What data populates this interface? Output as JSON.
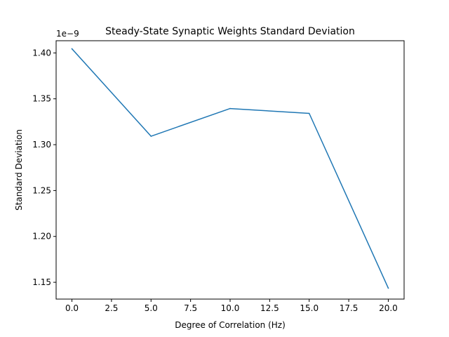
{
  "chart_data": {
    "type": "line",
    "title": "Steady-State Synaptic Weights Standard Deviation",
    "xlabel": "Degree of Correlation (Hz)",
    "ylabel": "Standard Deviation",
    "y_offset_label": "1e−9",
    "xlim": [
      -1.0,
      21.0
    ],
    "ylim": [
      1.1317,
      1.4133
    ],
    "x_ticks": [
      0.0,
      2.5,
      5.0,
      7.5,
      10.0,
      12.5,
      15.0,
      17.5,
      20.0
    ],
    "x_tick_labels": [
      "0.0",
      "2.5",
      "5.0",
      "7.5",
      "10.0",
      "12.5",
      "15.0",
      "17.5",
      "20.0"
    ],
    "y_ticks": [
      1.15,
      1.2,
      1.25,
      1.3,
      1.35,
      1.4
    ],
    "y_tick_labels": [
      "1.15",
      "1.20",
      "1.25",
      "1.30",
      "1.35",
      "1.40"
    ],
    "grid": false,
    "series": [
      {
        "color": "#1f77b4",
        "x": [
          0,
          5,
          10,
          15,
          20
        ],
        "values": [
          1.4045,
          1.3092,
          1.3394,
          1.3341,
          1.1437
        ]
      }
    ]
  }
}
